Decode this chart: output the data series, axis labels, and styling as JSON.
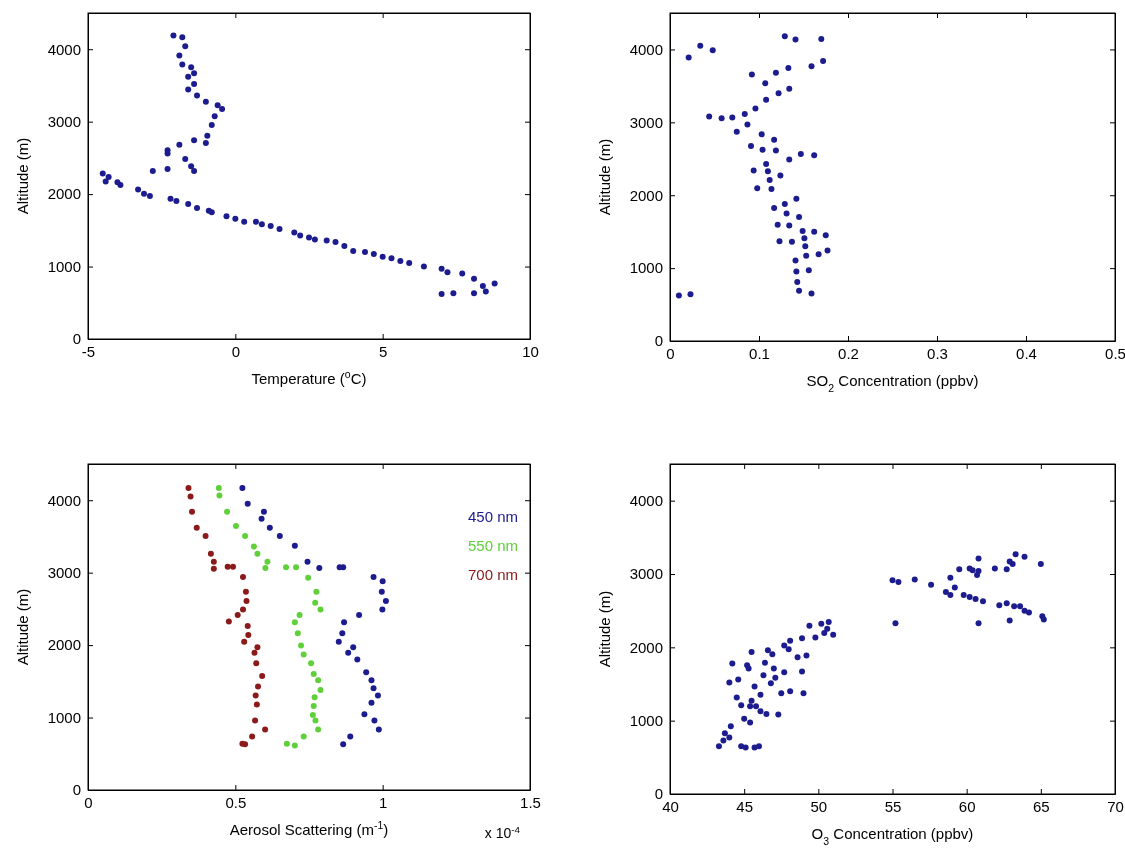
{
  "chart_data": [
    {
      "type": "scatter",
      "xlabel": "Temperature ($^{o}$C)",
      "ylabel": "Altitude (m)",
      "xlim": [
        -5,
        10
      ],
      "xticks": [
        -5,
        0,
        5,
        10
      ],
      "ylim": [
        0,
        4500
      ],
      "yticks": [
        0,
        1000,
        2000,
        3000,
        4000
      ],
      "marker": "circle",
      "series": [
        {
          "color": "#1c1c8f",
          "x": [
            8.8,
            8.5,
            8.4,
            8.1,
            8.1,
            7.7,
            7.2,
            7.0,
            7.4,
            7.0,
            6.4,
            5.9,
            5.6,
            5.3,
            5.0,
            4.7,
            4.4,
            4.0,
            3.7,
            3.4,
            3.1,
            2.7,
            2.5,
            2.2,
            2.0,
            1.5,
            1.2,
            0.9,
            0.7,
            0.3,
            0.0,
            -0.3,
            -0.8,
            -0.9,
            -1.3,
            -1.6,
            -2.0,
            -2.2,
            -2.9,
            -3.1,
            -3.3,
            -3.9,
            -4.0,
            -4.3,
            -4.5,
            -4.4,
            -2.8,
            -2.3,
            -1.4,
            -1.5,
            -1.7,
            -2.3,
            -2.3,
            -1.9,
            -1.4,
            -1.0,
            -0.95,
            -0.8,
            -0.7,
            -0.45,
            -0.6,
            -1.0,
            -1.3,
            -1.6,
            -1.4,
            -1.6,
            -1.4,
            -1.5,
            -1.8,
            -1.9,
            -1.7,
            -1.8,
            -2.1
          ],
          "values": [
            765,
            657,
            730,
            830,
            630,
            905,
            920,
            970,
            630,
            620,
            1000,
            1050,
            1075,
            1115,
            1135,
            1175,
            1200,
            1215,
            1285,
            1340,
            1360,
            1375,
            1400,
            1430,
            1470,
            1520,
            1560,
            1585,
            1620,
            1620,
            1660,
            1695,
            1750,
            1770,
            1810,
            1865,
            1905,
            1935,
            1975,
            2005,
            2065,
            2125,
            2165,
            2235,
            2285,
            2175,
            2320,
            2345,
            2320,
            2385,
            2485,
            2560,
            2605,
            2680,
            2745,
            2705,
            2805,
            2955,
            3075,
            3175,
            3225,
            3275,
            3360,
            3445,
            3520,
            3620,
            3670,
            3750,
            3790,
            3915,
            4040,
            4165,
            4190
          ]
        }
      ]
    },
    {
      "type": "scatter",
      "xlabel": "SO$_{2}$ Concentration (ppbv)",
      "ylabel": "Altitude (m)",
      "xlim": [
        0,
        0.5
      ],
      "xticks": [
        0,
        0.1,
        0.2,
        0.3,
        0.4,
        0.5
      ],
      "ylim": [
        0,
        4500
      ],
      "yticks": [
        0,
        1000,
        2000,
        3000,
        4000
      ],
      "marker": "circle",
      "series": [
        {
          "color": "#1c1c8f",
          "x": [
            0.01,
            0.023,
            0.021,
            0.034,
            0.048,
            0.129,
            0.141,
            0.17,
            0.172,
            0.159,
            0.133,
            0.119,
            0.092,
            0.107,
            0.134,
            0.122,
            0.108,
            0.096,
            0.044,
            0.058,
            0.07,
            0.084,
            0.087,
            0.075,
            0.103,
            0.091,
            0.104,
            0.117,
            0.119,
            0.147,
            0.162,
            0.134,
            0.108,
            0.094,
            0.11,
            0.124,
            0.112,
            0.098,
            0.114,
            0.142,
            0.129,
            0.117,
            0.131,
            0.145,
            0.121,
            0.134,
            0.149,
            0.162,
            0.175,
            0.151,
            0.123,
            0.137,
            0.152,
            0.177,
            0.167,
            0.153,
            0.141,
            0.142,
            0.156,
            0.143,
            0.145,
            0.159
          ],
          "values": [
            625,
            640,
            3890,
            4050,
            3990,
            4180,
            4135,
            4145,
            3840,
            3770,
            3745,
            3680,
            3655,
            3535,
            3460,
            3400,
            3310,
            3190,
            3080,
            3055,
            3065,
            3115,
            2970,
            2870,
            2835,
            2675,
            2625,
            2760,
            2615,
            2565,
            2550,
            2490,
            2430,
            2340,
            2330,
            2270,
            2210,
            2095,
            2085,
            1950,
            1880,
            1825,
            1750,
            1700,
            1595,
            1585,
            1510,
            1500,
            1450,
            1410,
            1370,
            1360,
            1300,
            1240,
            1190,
            1170,
            1105,
            955,
            970,
            810,
            690,
            650
          ]
        }
      ]
    },
    {
      "type": "scatter",
      "xlabel": "Aerosol Scattering (m$^{-1}$)",
      "ylabel": "Altitude (m)",
      "xlim": [
        0,
        1.5
      ],
      "xticks": [
        0,
        0.5,
        1,
        1.5
      ],
      "ylim": [
        0,
        4500
      ],
      "yticks": [
        0,
        1000,
        2000,
        3000,
        4000
      ],
      "marker": "circle",
      "legend": "top right",
      "annotations": [
        "x 10$^{-4}$"
      ],
      "series": [
        {
          "name": "450 nm",
          "color": "#1c1c8f",
          "x": [
            0.524,
            0.542,
            0.597,
            0.589,
            0.617,
            0.651,
            0.702,
            0.745,
            0.785,
            0.866,
            0.854,
            0.969,
            1.0,
            0.997,
            1.011,
            0.999,
            0.92,
            0.869,
            0.863,
            0.851,
            0.9,
            0.883,
            0.914,
            0.944,
            0.962,
            0.969,
            0.984,
            0.962,
            0.938,
            0.972,
            0.987,
            0.89,
            0.866
          ],
          "values": [
            4170,
            3950,
            3840,
            3745,
            3620,
            3505,
            3370,
            3150,
            3065,
            3075,
            3075,
            2940,
            2880,
            2735,
            2610,
            2490,
            2415,
            2315,
            2165,
            2045,
            1970,
            1895,
            1800,
            1625,
            1515,
            1405,
            1305,
            1205,
            1045,
            960,
            835,
            740,
            630
          ]
        },
        {
          "name": "550 nm",
          "color": "#5fd03a",
          "x": [
            0.444,
            0.446,
            0.472,
            0.502,
            0.533,
            0.563,
            0.575,
            0.609,
            0.602,
            0.672,
            0.706,
            0.747,
            0.775,
            0.771,
            0.789,
            0.718,
            0.702,
            0.712,
            0.723,
            0.732,
            0.757,
            0.766,
            0.781,
            0.789,
            0.769,
            0.766,
            0.763,
            0.772,
            0.781,
            0.732,
            0.702,
            0.675
          ],
          "values": [
            4170,
            4065,
            3840,
            3645,
            3505,
            3360,
            3260,
            3150,
            3065,
            3075,
            3075,
            2930,
            2735,
            2585,
            2490,
            2415,
            2315,
            2165,
            1995,
            1870,
            1750,
            1600,
            1515,
            1380,
            1280,
            1160,
            1035,
            960,
            835,
            740,
            615,
            640
          ]
        },
        {
          "name": "700 nm",
          "color": "#8b1a1a",
          "x": [
            0.341,
            0.348,
            0.353,
            0.369,
            0.399,
            0.417,
            0.427,
            0.427,
            0.474,
            0.492,
            0.526,
            0.536,
            0.538,
            0.526,
            0.508,
            0.478,
            0.542,
            0.544,
            0.53,
            0.575,
            0.565,
            0.571,
            0.591,
            0.577,
            0.569,
            0.573,
            0.567,
            0.601,
            0.557,
            0.533,
            0.524
          ],
          "values": [
            4170,
            4050,
            3840,
            3620,
            3505,
            3260,
            3150,
            3055,
            3080,
            3080,
            2940,
            2735,
            2610,
            2490,
            2415,
            2325,
            2265,
            2140,
            2045,
            1970,
            1895,
            1750,
            1575,
            1430,
            1305,
            1180,
            960,
            835,
            740,
            630,
            640
          ]
        }
      ]
    },
    {
      "type": "scatter",
      "xlabel": "O$_{3}$ Concentration (ppbv)",
      "ylabel": "Altitude (m)",
      "xlim": [
        40,
        70
      ],
      "xticks": [
        40,
        45,
        50,
        55,
        60,
        65,
        70
      ],
      "ylim": [
        0,
        4500
      ],
      "yticks": [
        0,
        1000,
        2000,
        3000,
        4000
      ],
      "marker": "circle",
      "series": [
        {
          "color": "#1c1c8f",
          "x": [
            43.3,
            43.6,
            43.7,
            44.0,
            44.1,
            44.8,
            45.1,
            45.7,
            46.0,
            45.0,
            45.4,
            44.8,
            44.5,
            45.4,
            45.8,
            45.5,
            46.1,
            46.5,
            47.3,
            46.1,
            45.7,
            44.0,
            44.6,
            44.2,
            45.2,
            45.3,
            45.5,
            46.3,
            46.4,
            46.6,
            46.9,
            47.0,
            46.8,
            47.1,
            47.5,
            47.7,
            48.1,
            47.7,
            48.0,
            48.1,
            48.6,
            48.9,
            49.2,
            48.9,
            49.0,
            49.4,
            49.8,
            50.2,
            50.4,
            50.7,
            51.0,
            50.6,
            55.0,
            55.4,
            55.2,
            56.5,
            57.6,
            58.6,
            58.9,
            58.9,
            59.2,
            59.5,
            59.8,
            60.2,
            60.2,
            60.4,
            60.7,
            60.6,
            60.8,
            60.8,
            60.8,
            61.1,
            61.9,
            62.2,
            62.7,
            62.7,
            62.9,
            62.9,
            63.2,
            63.1,
            63.3,
            63.6,
            63.9,
            63.9,
            64.2,
            65.0,
            65.1,
            65.2
          ],
          "values": [
            650,
            730,
            830,
            770,
            925,
            650,
            635,
            635,
            650,
            1025,
            975,
            1210,
            1315,
            1195,
            1195,
            1270,
            1130,
            1090,
            1085,
            1355,
            1465,
            1520,
            1560,
            1780,
            1755,
            1710,
            1935,
            1620,
            1790,
            1960,
            1905,
            1710,
            1510,
            1585,
            1375,
            1660,
            1400,
            2025,
            1975,
            2090,
            1865,
            2125,
            1890,
            1670,
            1375,
            2295,
            2135,
            2320,
            2195,
            2345,
            2170,
            2255,
            2915,
            2890,
            2330,
            2925,
            2855,
            2755,
            2950,
            2715,
            2815,
            3065,
            2715,
            2685,
            3075,
            3050,
            2985,
            2660,
            3210,
            3040,
            2330,
            2630,
            3075,
            2575,
            3065,
            2600,
            3170,
            2365,
            2560,
            3135,
            3270,
            2560,
            3235,
            2500,
            2475,
            3135,
            2425,
            2380
          ]
        }
      ]
    }
  ]
}
